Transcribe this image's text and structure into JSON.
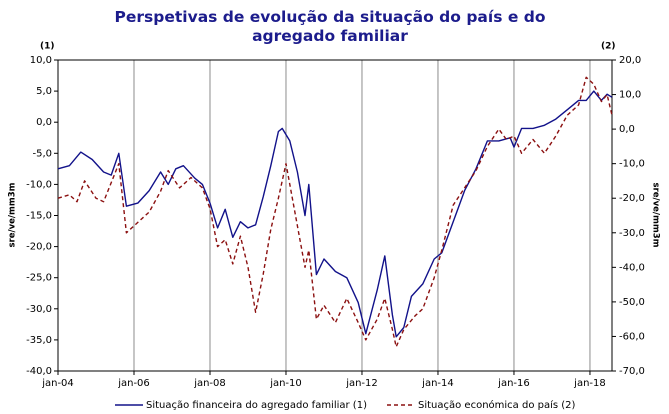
{
  "chart_data": {
    "type": "line",
    "title": "Perspetivas de evolução da situação do país e do agregado familiar",
    "y_annotation": "(1)",
    "y2_annotation": "(2)",
    "ylabel": "sre/ve/mm3m",
    "y2label": "sre/ve/mm3m",
    "xlim": [
      2004,
      2018.58
    ],
    "xticks": [
      {
        "value": 2004,
        "label": "jan-04"
      },
      {
        "value": 2006,
        "label": "jan-06"
      },
      {
        "value": 2008,
        "label": "jan-08"
      },
      {
        "value": 2010,
        "label": "jan-10"
      },
      {
        "value": 2012,
        "label": "jan-12"
      },
      {
        "value": 2014,
        "label": "jan-14"
      },
      {
        "value": 2016,
        "label": "jan-16"
      },
      {
        "value": 2018,
        "label": "jan-18"
      }
    ],
    "ylim": [
      -40,
      10
    ],
    "yticks": [
      {
        "value": 10,
        "label": "10,0"
      },
      {
        "value": 5,
        "label": "5,0"
      },
      {
        "value": 0,
        "label": "0,0"
      },
      {
        "value": -5,
        "label": "-5,0"
      },
      {
        "value": -10,
        "label": "-10,0"
      },
      {
        "value": -15,
        "label": "-15,0"
      },
      {
        "value": -20,
        "label": "-20,0"
      },
      {
        "value": -25,
        "label": "-25,0"
      },
      {
        "value": -30,
        "label": "-30,0"
      },
      {
        "value": -35,
        "label": "-35,0"
      },
      {
        "value": -40,
        "label": "-40,0"
      }
    ],
    "y2lim": [
      -70,
      20
    ],
    "y2ticks": [
      {
        "value": 20,
        "label": "20,0"
      },
      {
        "value": 10,
        "label": "10,0"
      },
      {
        "value": 0,
        "label": "0,0"
      },
      {
        "value": -10,
        "label": "-10,0"
      },
      {
        "value": -20,
        "label": "-20,0"
      },
      {
        "value": -30,
        "label": "-30,0"
      },
      {
        "value": -40,
        "label": "-40,0"
      },
      {
        "value": -50,
        "label": "-50,0"
      },
      {
        "value": -60,
        "label": "-60,0"
      },
      {
        "value": -70,
        "label": "-70,0"
      }
    ],
    "grid": "x",
    "series": [
      {
        "name": "Situação financeira do agregado familiar (1)",
        "color": "#12128a",
        "line_style": "solid",
        "axis": "y",
        "x": [
          2004,
          2004.3,
          2004.6,
          2004.9,
          2005.2,
          2005.4,
          2005.6,
          2005.8,
          2006.1,
          2006.4,
          2006.7,
          2006.9,
          2007.1,
          2007.3,
          2007.6,
          2007.8,
          2008.0,
          2008.2,
          2008.4,
          2008.6,
          2008.8,
          2009.0,
          2009.2,
          2009.4,
          2009.6,
          2009.8,
          2009.9,
          2010.1,
          2010.3,
          2010.5,
          2010.6,
          2010.8,
          2011.0,
          2011.3,
          2011.6,
          2011.9,
          2012.1,
          2012.4,
          2012.6,
          2012.8,
          2012.9,
          2013.1,
          2013.3,
          2013.6,
          2013.9,
          2014.1,
          2014.4,
          2014.7,
          2015.0,
          2015.3,
          2015.6,
          2015.9,
          2016.0,
          2016.2,
          2016.5,
          2016.8,
          2017.1,
          2017.4,
          2017.7,
          2017.9,
          2018.1,
          2018.3,
          2018.45,
          2018.58
        ],
        "values": [
          -7.5,
          -7,
          -4.8,
          -6,
          -8,
          -8.5,
          -5,
          -13.5,
          -13,
          -11,
          -8,
          -10,
          -7.5,
          -7,
          -9,
          -10,
          -13,
          -17,
          -14,
          -18.5,
          -16,
          -17,
          -16.5,
          -12,
          -7,
          -1.5,
          -1,
          -3,
          -8,
          -15,
          -10,
          -24.5,
          -22,
          -24,
          -25,
          -29,
          -34,
          -27,
          -21.5,
          -31,
          -34.5,
          -33,
          -28,
          -26,
          -22,
          -21,
          -16,
          -11,
          -7.5,
          -3,
          -3,
          -2.5,
          -4,
          -1,
          -1,
          -0.5,
          0.5,
          2,
          3.5,
          3.5,
          5,
          3.5,
          4.5,
          4
        ]
      },
      {
        "name": "Situação económica do país (2)",
        "color": "#8b1010",
        "line_style": "dashed",
        "axis": "y2",
        "x": [
          2004,
          2004.3,
          2004.5,
          2004.7,
          2005.0,
          2005.2,
          2005.6,
          2005.8,
          2006.1,
          2006.4,
          2006.7,
          2006.9,
          2007.2,
          2007.5,
          2007.8,
          2008.0,
          2008.2,
          2008.4,
          2008.6,
          2008.8,
          2009.0,
          2009.2,
          2009.4,
          2009.6,
          2009.8,
          2010.0,
          2010.2,
          2010.5,
          2010.6,
          2010.8,
          2011.0,
          2011.3,
          2011.6,
          2011.9,
          2012.1,
          2012.4,
          2012.6,
          2012.8,
          2012.9,
          2013.1,
          2013.4,
          2013.6,
          2013.9,
          2014.1,
          2014.4,
          2014.7,
          2015.0,
          2015.3,
          2015.6,
          2015.8,
          2016.0,
          2016.2,
          2016.5,
          2016.8,
          2017.1,
          2017.4,
          2017.7,
          2017.9,
          2018.1,
          2018.3,
          2018.45,
          2018.58
        ],
        "values": [
          -20,
          -19,
          -21,
          -15,
          -20,
          -21,
          -10,
          -30,
          -27,
          -24,
          -18,
          -12,
          -17,
          -14,
          -17,
          -23,
          -34,
          -32,
          -39,
          -31,
          -40,
          -53,
          -42,
          -29,
          -20,
          -10,
          -22,
          -40,
          -35,
          -55,
          -51,
          -56,
          -49,
          -56,
          -61,
          -55,
          -49,
          -58,
          -63,
          -58,
          -54,
          -52,
          -43,
          -35,
          -22,
          -17,
          -12,
          -5,
          0,
          -3,
          -2,
          -7,
          -3,
          -7,
          -2,
          4,
          7,
          15,
          13,
          8,
          10,
          4
        ]
      }
    ]
  }
}
